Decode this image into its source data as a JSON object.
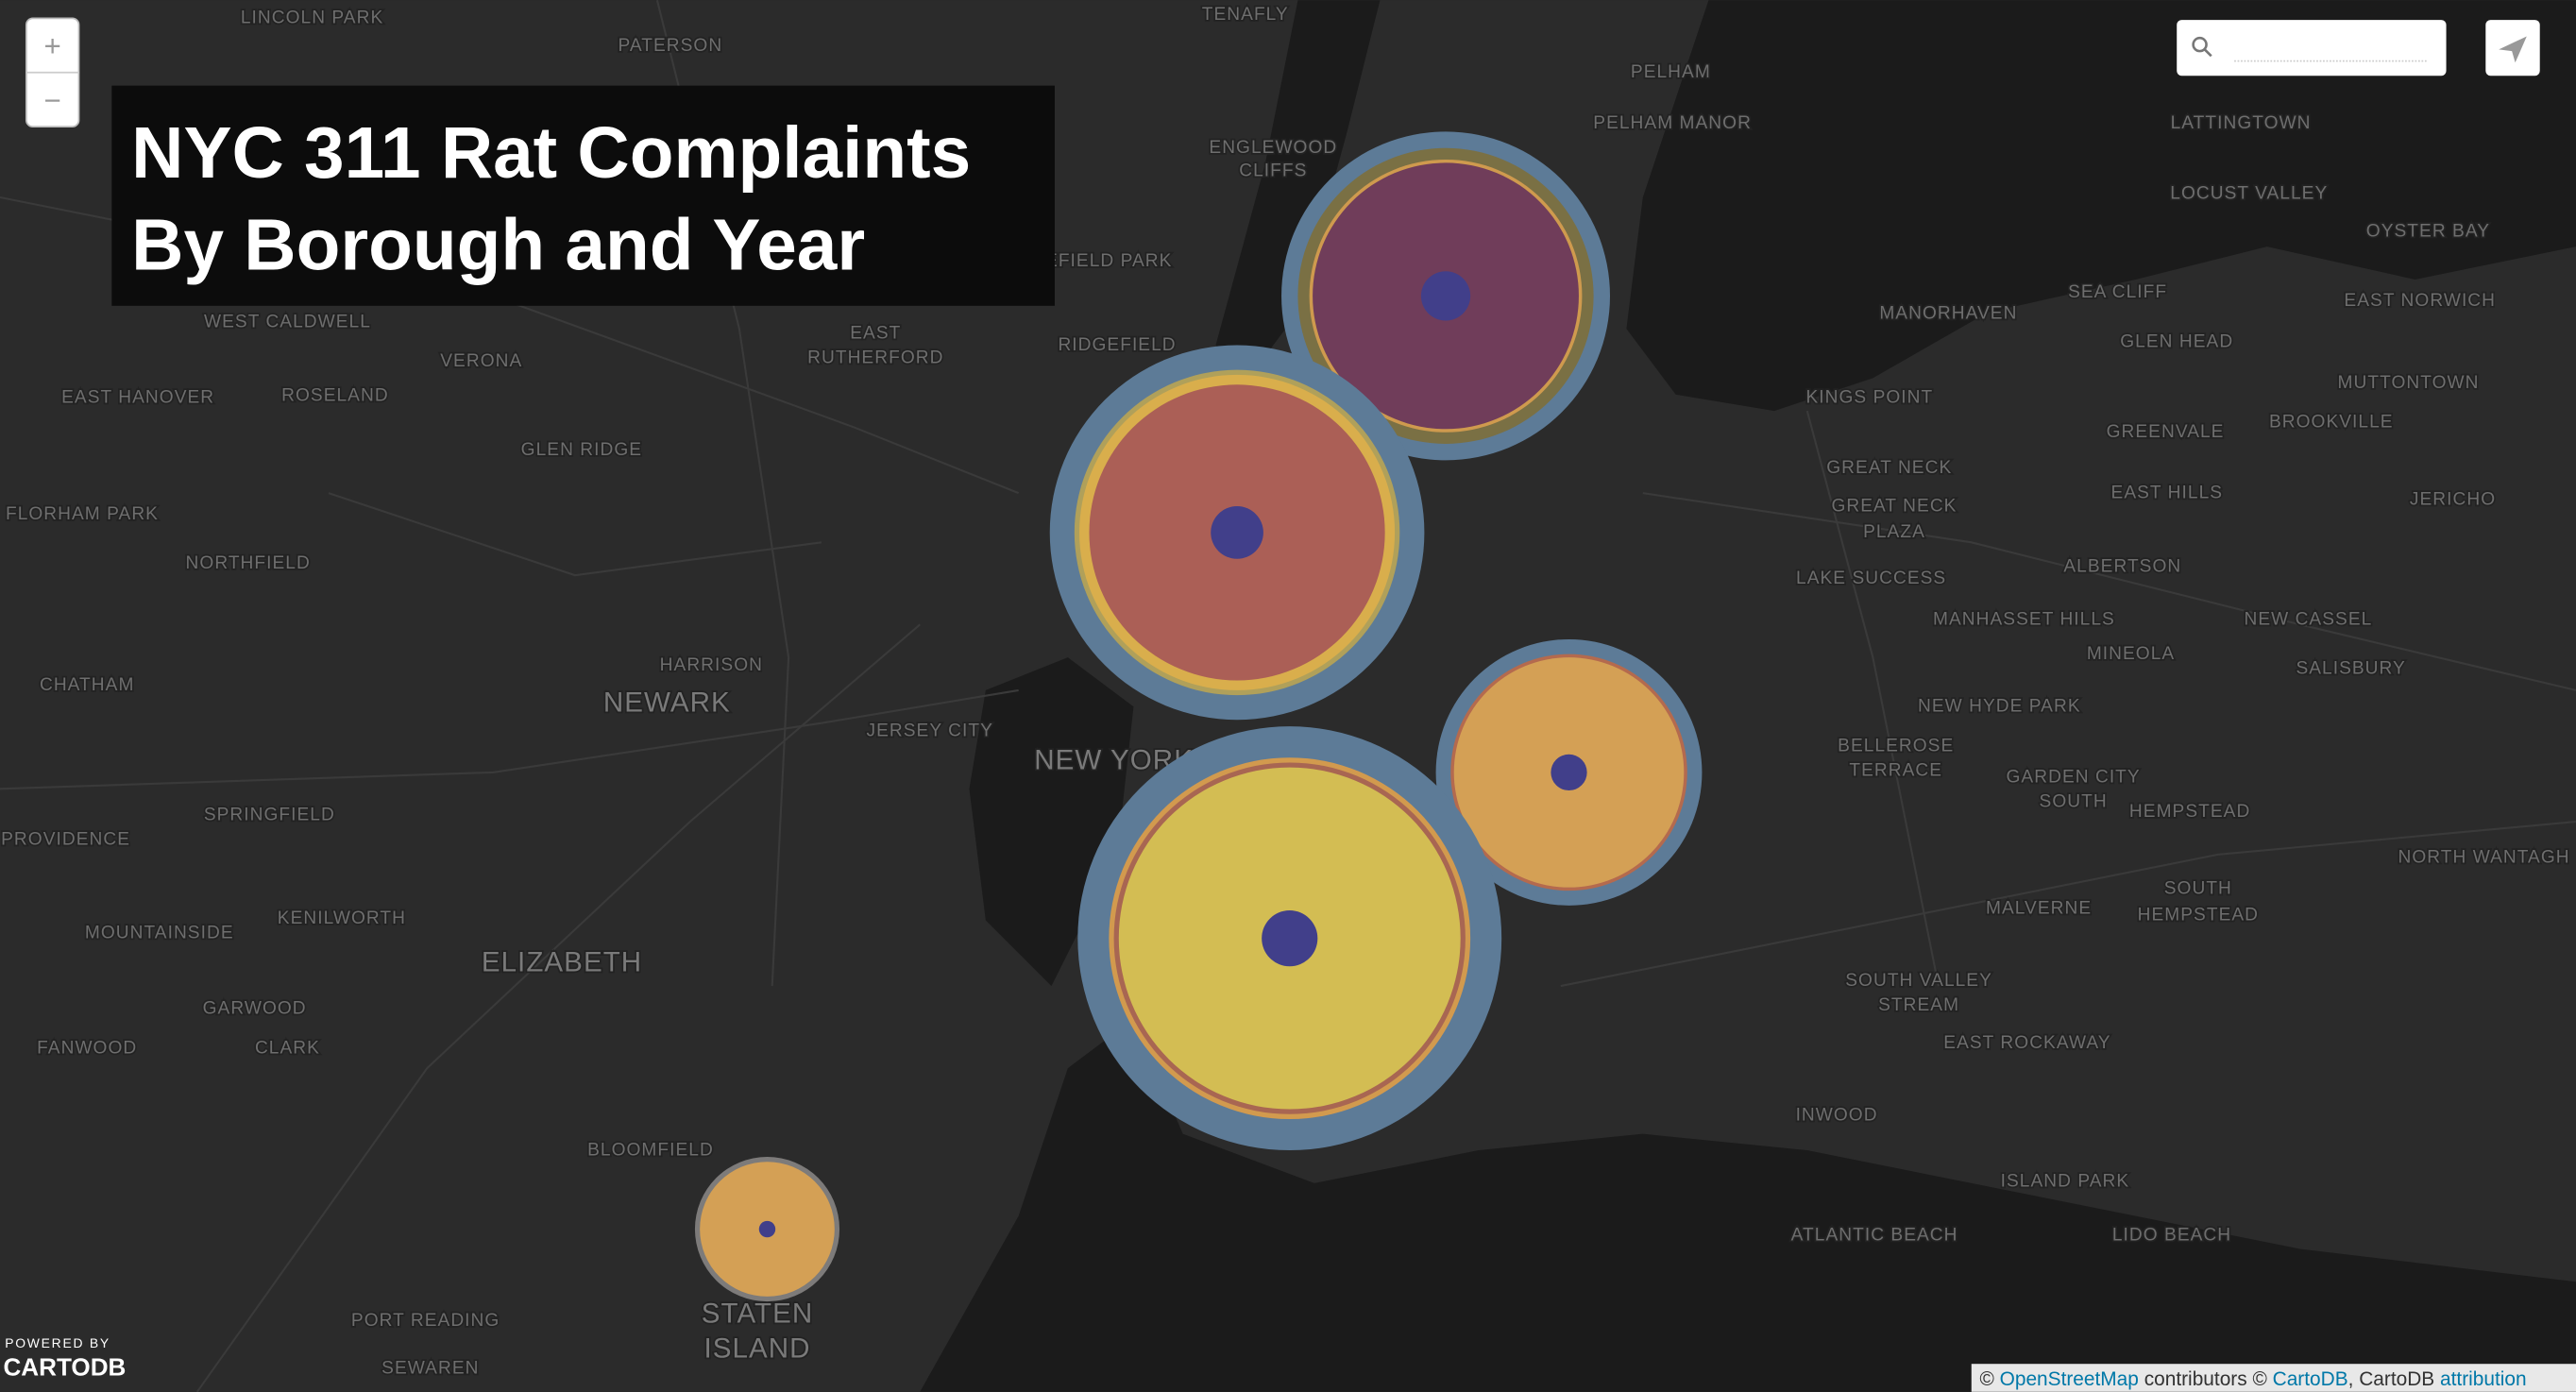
{
  "header": {
    "title_lines": [
      "NYC 311 Rat Complaints",
      "By Borough and Year"
    ]
  },
  "controls": {
    "zoom_in": "+",
    "zoom_out": "−"
  },
  "map": {
    "labels": [
      "LINCOLN PARK",
      "PATERSON",
      "TENAFLY",
      "PELHAM",
      "PELHAM MANOR",
      "LATTINGTOWN",
      "LOCUST VALLEY",
      "OYSTER BAY",
      "ENGLEWOOD",
      "CLIFFS",
      "RIDGEFIELD PARK",
      "RIDGEFIELD",
      "WEST CALDWELL",
      "VERONA",
      "EAST",
      "RUTHERFORD",
      "EAST HANOVER",
      "ROSELAND",
      "GLEN RIDGE",
      "FLORHAM PARK",
      "NORTHFIELD",
      "CHATHAM",
      "HARRISON",
      "NEWARK",
      "JERSEY CITY",
      "NEW YORK",
      "SPRINGFIELD",
      "PROVIDENCE",
      "KENILWORTH",
      "MOUNTAINSIDE",
      "ELIZABETH",
      "GARWOOD",
      "FANWOOD",
      "CLARK",
      "BLOOMFIELD",
      "PORT READING",
      "SEWAREN",
      "STATEN",
      "ISLAND",
      "MANORHAVEN",
      "SEA CLIFF",
      "GLEN HEAD",
      "EAST NORWICH",
      "MUTTONTOWN",
      "KINGS POINT",
      "GREENVALE",
      "BROOKVILLE",
      "GREAT NECK",
      "EAST HILLS",
      "JERICHO",
      "GREAT NECK",
      "PLAZA",
      "LAKE SUCCESS",
      "ALBERTSON",
      "MANHASSET HILLS",
      "NEW CASSEL",
      "MINEOLA",
      "SALISBURY",
      "NEW HYDE PARK",
      "BELLEROSE",
      "TERRACE",
      "GARDEN CITY",
      "SOUTH",
      "HEMPSTEAD",
      "NORTH WANTAGH",
      "MALVERNE",
      "SOUTH",
      "HEMPSTEAD",
      "SOUTH VALLEY",
      "STREAM",
      "EAST ROCKAWAY",
      "INWOOD",
      "ISLAND PARK",
      "ATLANTIC BEACH",
      "LIDO BEACH"
    ]
  },
  "logo": {
    "powered": "POWERED BY",
    "brand": "CARTODB"
  },
  "attribution": [
    "©",
    "OpenStreetMap",
    "contributors ©",
    "CartoDB",
    ", CartoDB",
    "attribution"
  ]
}
